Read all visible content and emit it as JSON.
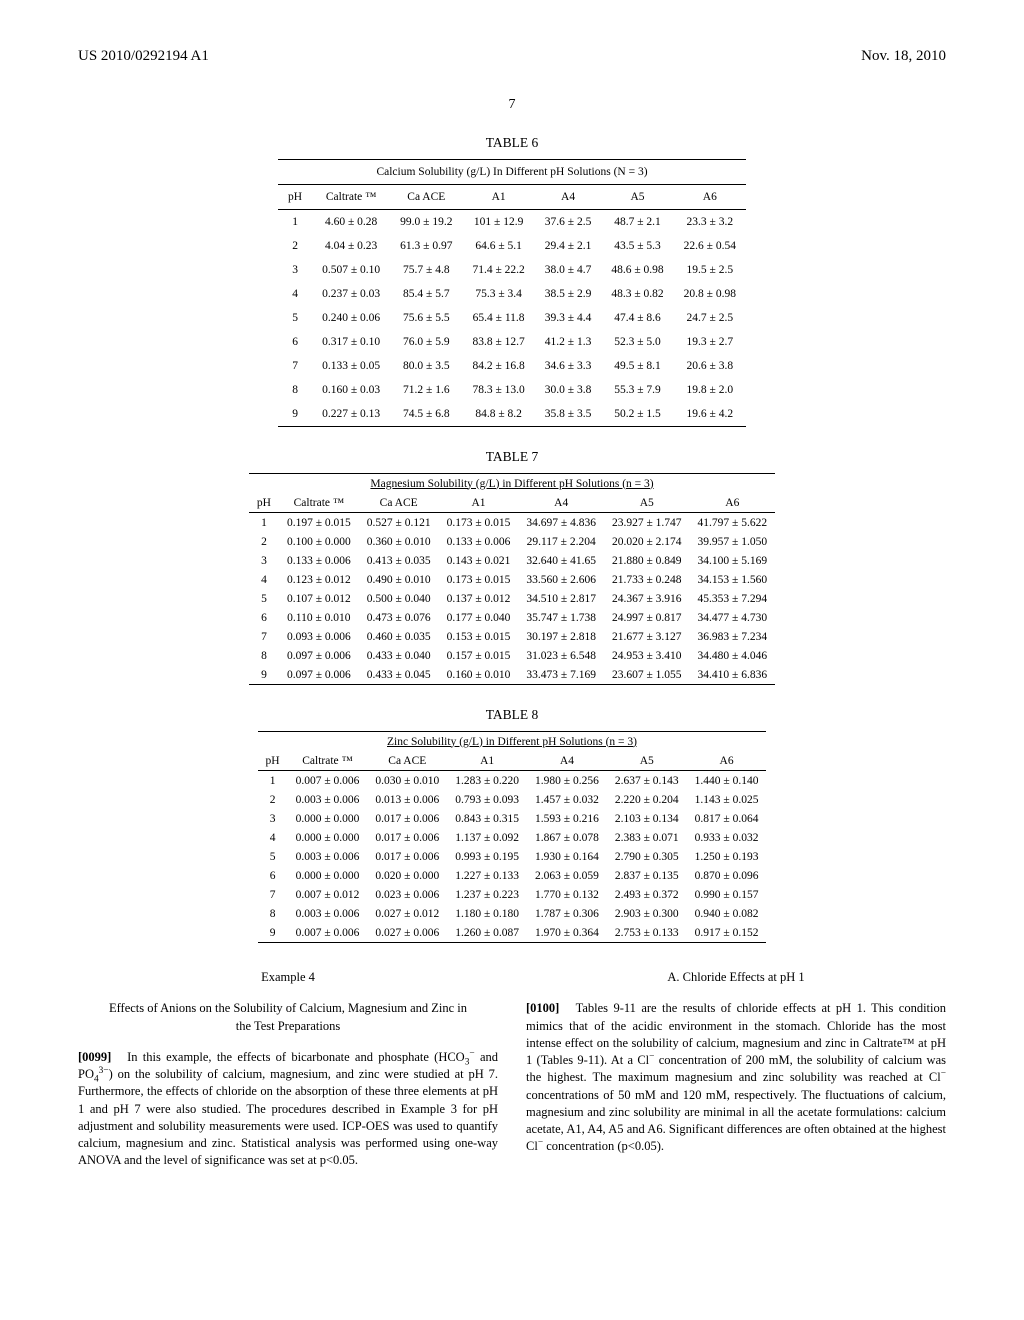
{
  "header": {
    "doc_number": "US 2010/0292194 A1",
    "date": "Nov. 18, 2010",
    "page": "7"
  },
  "table6": {
    "label": "TABLE 6",
    "caption": "Calcium Solubility (g/L) In Different pH Solutions (N = 3)",
    "columns": [
      "pH",
      "Caltrate ™",
      "Ca ACE",
      "A1",
      "A4",
      "A5",
      "A6"
    ],
    "rows": [
      [
        "1",
        "4.60 ± 0.28",
        "99.0 ± 19.2",
        "101 ± 12.9",
        "37.6 ± 2.5",
        "48.7 ± 2.1",
        "23.3 ± 3.2"
      ],
      [
        "2",
        "4.04 ± 0.23",
        "61.3 ± 0.97",
        "64.6 ± 5.1",
        "29.4 ± 2.1",
        "43.5 ± 5.3",
        "22.6 ± 0.54"
      ],
      [
        "3",
        "0.507 ± 0.10",
        "75.7 ± 4.8",
        "71.4 ± 22.2",
        "38.0 ± 4.7",
        "48.6 ± 0.98",
        "19.5 ± 2.5"
      ],
      [
        "4",
        "0.237 ± 0.03",
        "85.4 ± 5.7",
        "75.3 ± 3.4",
        "38.5 ± 2.9",
        "48.3 ± 0.82",
        "20.8 ± 0.98"
      ],
      [
        "5",
        "0.240 ± 0.06",
        "75.6 ± 5.5",
        "65.4 ± 11.8",
        "39.3 ± 4.4",
        "47.4 ± 8.6",
        "24.7 ± 2.5"
      ],
      [
        "6",
        "0.317 ± 0.10",
        "76.0 ± 5.9",
        "83.8 ± 12.7",
        "41.2 ± 1.3",
        "52.3 ± 5.0",
        "19.3 ± 2.7"
      ],
      [
        "7",
        "0.133 ± 0.05",
        "80.0 ± 3.5",
        "84.2 ± 16.8",
        "34.6 ± 3.3",
        "49.5 ± 8.1",
        "20.6 ± 3.8"
      ],
      [
        "8",
        "0.160 ± 0.03",
        "71.2 ± 1.6",
        "78.3 ± 13.0",
        "30.0 ± 3.8",
        "55.3 ± 7.9",
        "19.8 ± 2.0"
      ],
      [
        "9",
        "0.227 ± 0.13",
        "74.5 ± 6.8",
        "84.8 ± 8.2",
        "35.8 ± 3.5",
        "50.2 ± 1.5",
        "19.6 ± 4.2"
      ]
    ]
  },
  "table7": {
    "label": "TABLE 7",
    "caption": "Magnesium Solubility (g/L) in Different pH Solutions (n = 3)",
    "columns": [
      "pH",
      "Caltrate ™",
      "Ca ACE",
      "A1",
      "A4",
      "A5",
      "A6"
    ],
    "rows": [
      [
        "1",
        "0.197 ± 0.015",
        "0.527 ± 0.121",
        "0.173 ± 0.015",
        "34.697 ± 4.836",
        "23.927 ± 1.747",
        "41.797 ± 5.622"
      ],
      [
        "2",
        "0.100 ± 0.000",
        "0.360 ± 0.010",
        "0.133 ± 0.006",
        "29.117 ± 2.204",
        "20.020 ± 2.174",
        "39.957 ± 1.050"
      ],
      [
        "3",
        "0.133 ± 0.006",
        "0.413 ± 0.035",
        "0.143 ± 0.021",
        "32.640 ± 41.65",
        "21.880 ± 0.849",
        "34.100 ± 5.169"
      ],
      [
        "4",
        "0.123 ± 0.012",
        "0.490 ± 0.010",
        "0.173 ± 0.015",
        "33.560 ± 2.606",
        "21.733 ± 0.248",
        "34.153 ± 1.560"
      ],
      [
        "5",
        "0.107 ± 0.012",
        "0.500 ± 0.040",
        "0.137 ± 0.012",
        "34.510 ± 2.817",
        "24.367 ± 3.916",
        "45.353 ± 7.294"
      ],
      [
        "6",
        "0.110 ± 0.010",
        "0.473 ± 0.076",
        "0.177 ± 0.040",
        "35.747 ± 1.738",
        "24.997 ± 0.817",
        "34.477 ± 4.730"
      ],
      [
        "7",
        "0.093 ± 0.006",
        "0.460 ± 0.035",
        "0.153 ± 0.015",
        "30.197 ± 2.818",
        "21.677 ± 3.127",
        "36.983 ± 7.234"
      ],
      [
        "8",
        "0.097 ± 0.006",
        "0.433 ± 0.040",
        "0.157 ± 0.015",
        "31.023 ± 6.548",
        "24.953 ± 3.410",
        "34.480 ± 4.046"
      ],
      [
        "9",
        "0.097 ± 0.006",
        "0.433 ± 0.045",
        "0.160 ± 0.010",
        "33.473 ± 7.169",
        "23.607 ± 1.055",
        "34.410 ± 6.836"
      ]
    ]
  },
  "table8": {
    "label": "TABLE 8",
    "caption": "Zinc Solubility (g/L) in Different pH Solutions (n = 3)",
    "columns": [
      "pH",
      "Caltrate ™",
      "Ca ACE",
      "A1",
      "A4",
      "A5",
      "A6"
    ],
    "rows": [
      [
        "1",
        "0.007 ± 0.006",
        "0.030 ± 0.010",
        "1.283 ± 0.220",
        "1.980 ± 0.256",
        "2.637 ± 0.143",
        "1.440 ± 0.140"
      ],
      [
        "2",
        "0.003 ± 0.006",
        "0.013 ± 0.006",
        "0.793 ± 0.093",
        "1.457 ± 0.032",
        "2.220 ± 0.204",
        "1.143 ± 0.025"
      ],
      [
        "3",
        "0.000 ± 0.000",
        "0.017 ± 0.006",
        "0.843 ± 0.315",
        "1.593 ± 0.216",
        "2.103 ± 0.134",
        "0.817 ± 0.064"
      ],
      [
        "4",
        "0.000 ± 0.000",
        "0.017 ± 0.006",
        "1.137 ± 0.092",
        "1.867 ± 0.078",
        "2.383 ± 0.071",
        "0.933 ± 0.032"
      ],
      [
        "5",
        "0.003 ± 0.006",
        "0.017 ± 0.006",
        "0.993 ± 0.195",
        "1.930 ± 0.164",
        "2.790 ± 0.305",
        "1.250 ± 0.193"
      ],
      [
        "6",
        "0.000 ± 0.000",
        "0.020 ± 0.000",
        "1.227 ± 0.133",
        "2.063 ± 0.059",
        "2.837 ± 0.135",
        "0.870 ± 0.096"
      ],
      [
        "7",
        "0.007 ± 0.012",
        "0.023 ± 0.006",
        "1.237 ± 0.223",
        "1.770 ± 0.132",
        "2.493 ± 0.372",
        "0.990 ± 0.157"
      ],
      [
        "8",
        "0.003 ± 0.006",
        "0.027 ± 0.012",
        "1.180 ± 0.180",
        "1.787 ± 0.306",
        "2.903 ± 0.300",
        "0.940 ± 0.082"
      ],
      [
        "9",
        "0.007 ± 0.006",
        "0.027 ± 0.006",
        "1.260 ± 0.087",
        "1.970 ± 0.364",
        "2.753 ± 0.133",
        "0.917 ± 0.152"
      ]
    ]
  },
  "left_col": {
    "example": "Example 4",
    "section_title": "Effects of Anions on the Solubility of Calcium, Magnesium and Zinc in the Test Preparations",
    "para_num": "[0099]",
    "para_text": "In this example, the effects of bicarbonate and phosphate (HCO₃⁻ and PO₄³⁻) on the solubility of calcium, magnesium, and zinc were studied at pH 7. Furthermore, the effects of chloride on the absorption of these three elements at pH 1 and pH 7 were also studied. The procedures described in Example 3 for pH adjustment and solubility measurements were used. ICP-OES was used to quantify calcium, magnesium and zinc. Statistical analysis was performed using one-way ANOVA and the level of significance was set at p<0.05."
  },
  "right_col": {
    "subtitle": "A. Chloride Effects at pH 1",
    "para_num": "[0100]",
    "para_text": "Tables 9-11 are the results of chloride effects at pH 1. This condition mimics that of the acidic environment in the stomach. Chloride has the most intense effect on the solubility of calcium, magnesium and zinc in Caltrate™ at pH 1 (Tables 9-11). At a Cl⁻ concentration of 200 mM, the solubility of calcium was the highest. The maximum magnesium and zinc solubility was reached at Cl⁻ concentrations of 50 mM and 120 mM, respectively. The fluctuations of calcium, magnesium and zinc solubility are minimal in all the acetate formulations: calcium acetate, A1, A4, A5 and A6. Significant differences are often obtained at the highest Cl⁻ concentration (p<0.05)."
  }
}
